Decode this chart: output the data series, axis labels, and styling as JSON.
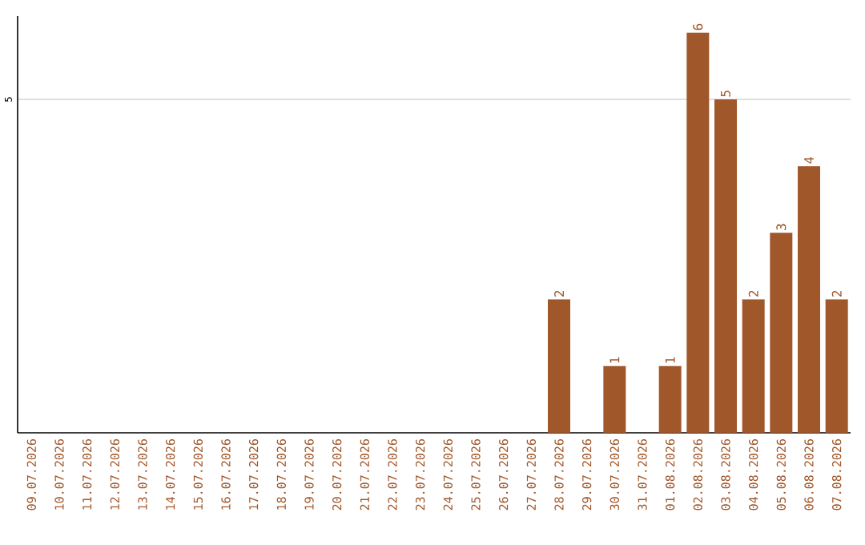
{
  "chart_data": {
    "type": "bar",
    "categories": [
      "09.07.2026",
      "10.07.2026",
      "11.07.2026",
      "12.07.2026",
      "13.07.2026",
      "14.07.2026",
      "15.07.2026",
      "16.07.2026",
      "17.07.2026",
      "18.07.2026",
      "19.07.2026",
      "20.07.2026",
      "21.07.2026",
      "22.07.2026",
      "23.07.2026",
      "24.07.2026",
      "25.07.2026",
      "26.07.2026",
      "27.07.2026",
      "28.07.2026",
      "29.07.2026",
      "30.07.2026",
      "31.07.2026",
      "01.08.2026",
      "02.08.2026",
      "03.08.2026",
      "04.08.2026",
      "05.08.2026",
      "06.08.2026",
      "07.08.2026"
    ],
    "values": [
      null,
      null,
      null,
      null,
      null,
      null,
      null,
      null,
      null,
      null,
      null,
      null,
      null,
      null,
      null,
      null,
      null,
      null,
      null,
      2,
      null,
      1,
      null,
      1,
      6,
      5,
      2,
      3,
      4,
      2
    ],
    "data_labels": true,
    "color": "#a0572a",
    "ylim": [
      0,
      6.25
    ],
    "yticks": [
      5
    ],
    "grid": "y"
  }
}
